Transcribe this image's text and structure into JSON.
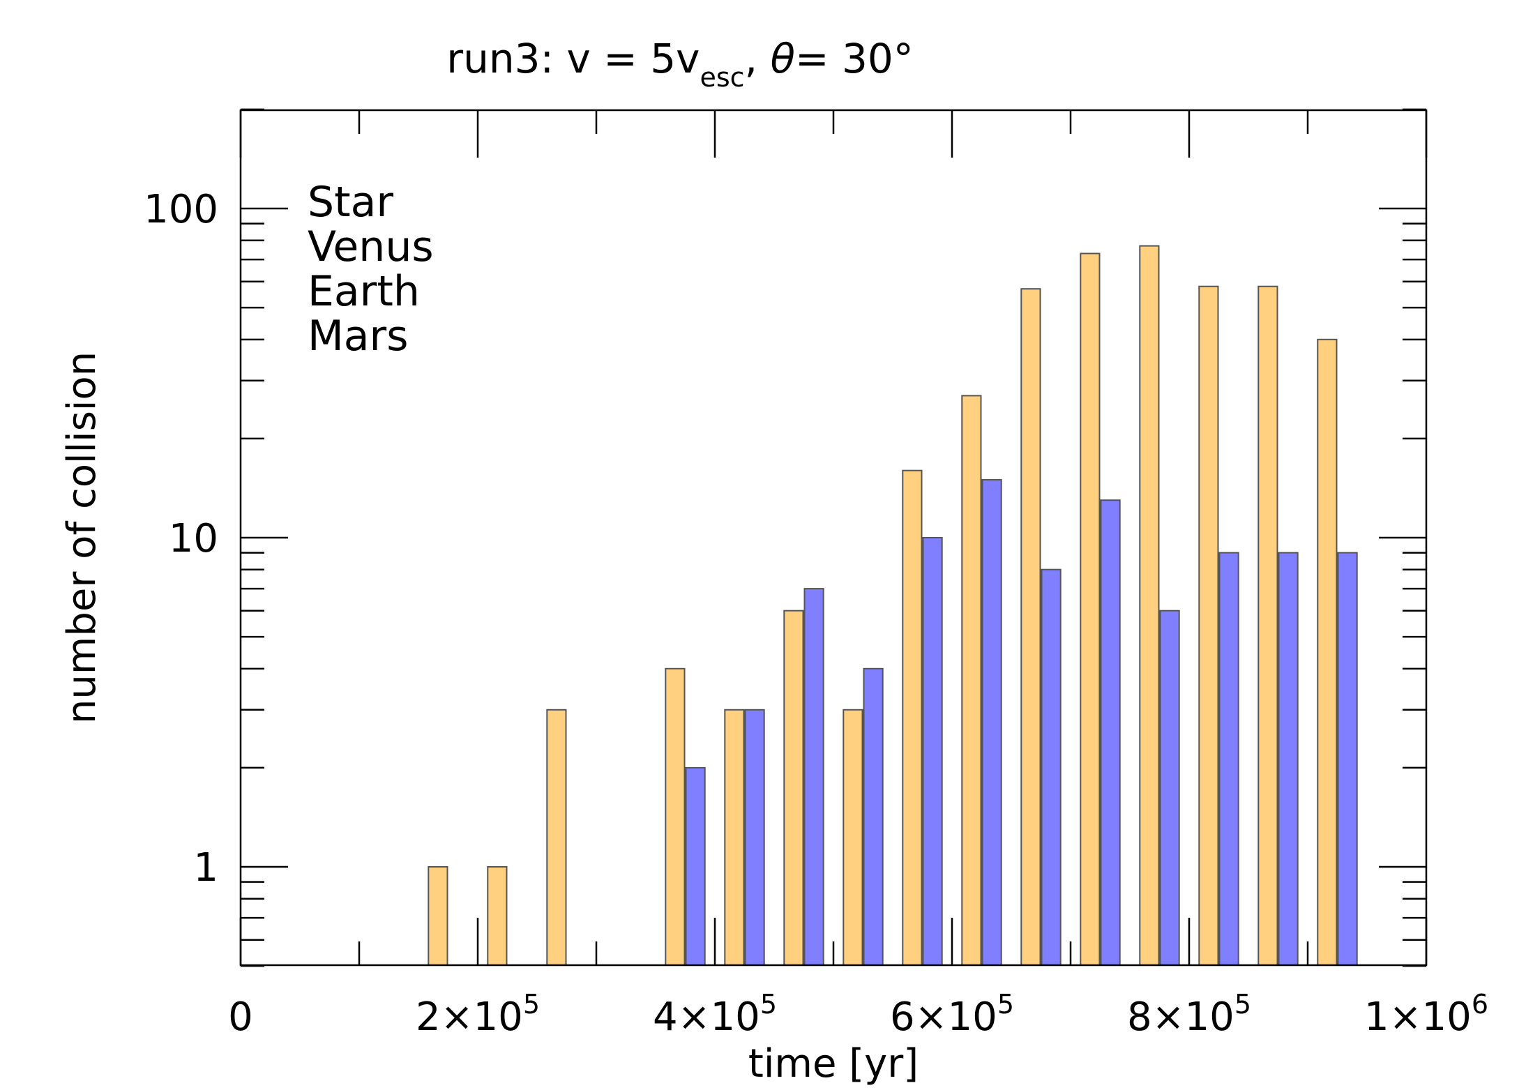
{
  "chart_data": {
    "type": "bar",
    "title": {
      "prefix": "run3: v = 5v",
      "subscript": "esc",
      "middle": ", ",
      "theta": "θ",
      "suffix": "= 30°"
    },
    "xlabel": "time [yr]",
    "ylabel": "number of collision",
    "y_scale": "log",
    "xlim": [
      0,
      1000000
    ],
    "ylim": [
      0.5,
      200
    ],
    "x_ticks": [
      {
        "value": 0,
        "mantissa": "0",
        "exponent": ""
      },
      {
        "value": 200000,
        "mantissa": "2×10",
        "exponent": "5"
      },
      {
        "value": 400000,
        "mantissa": "4×10",
        "exponent": "5"
      },
      {
        "value": 600000,
        "mantissa": "6×10",
        "exponent": "5"
      },
      {
        "value": 800000,
        "mantissa": "8×10",
        "exponent": "5"
      },
      {
        "value": 1000000,
        "mantissa": "1×10",
        "exponent": "6"
      }
    ],
    "y_ticks": [
      {
        "value": 1,
        "label": "1"
      },
      {
        "value": 10,
        "label": "10"
      },
      {
        "value": 100,
        "label": "100"
      }
    ],
    "legend": [
      {
        "name": "Star",
        "color": "#FFA500"
      },
      {
        "name": "Venus",
        "color": "#008000"
      },
      {
        "name": "Earth",
        "color": "#0000FF"
      },
      {
        "name": "Mars",
        "color": "#FF0000"
      }
    ],
    "legend_position": "top-left",
    "bin_width": 50000,
    "bin_centers": [
      25000,
      75000,
      125000,
      175000,
      225000,
      275000,
      325000,
      375000,
      425000,
      475000,
      525000,
      575000,
      625000,
      675000,
      725000,
      775000,
      825000,
      875000,
      925000
    ],
    "series": [
      {
        "name": "Star",
        "color": "#FFD080",
        "values": [
          0,
          0,
          0,
          1,
          1,
          3,
          0,
          4,
          3,
          6,
          3,
          16,
          27,
          57,
          73,
          77,
          58,
          58,
          40
        ]
      },
      {
        "name": "Earth",
        "color": "#7F7FFF",
        "values": [
          0,
          0,
          0,
          0,
          0,
          0,
          0,
          2,
          3,
          7,
          4,
          10,
          15,
          8,
          13,
          6,
          9,
          9,
          9
        ]
      }
    ]
  }
}
